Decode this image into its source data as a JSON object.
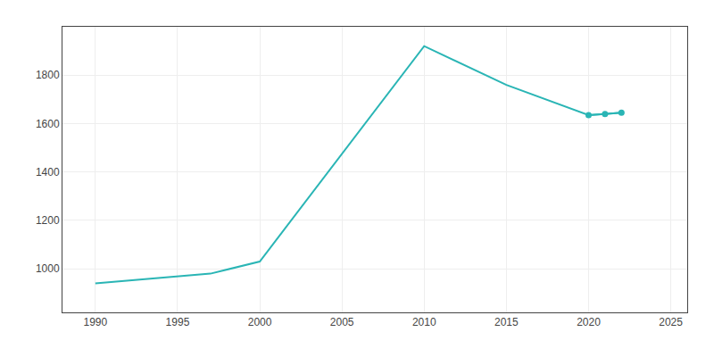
{
  "chart_data": {
    "type": "line",
    "x": [
      1990,
      1997,
      2000,
      2010,
      2015,
      2020,
      2021,
      2022
    ],
    "series": [
      {
        "color": "#2ab5b5",
        "values": [
          940,
          980,
          1030,
          1920,
          1760,
          1635,
          1640,
          1645
        ]
      },
      {
        "color": "#2ab5b5",
        "marker": "circle",
        "values": [
          null,
          null,
          null,
          null,
          null,
          1635,
          1640,
          1645
        ]
      }
    ],
    "xlim": [
      1988,
      2026
    ],
    "ylim": [
      820,
      2000
    ],
    "xticks": [
      1990,
      1995,
      2000,
      2005,
      2010,
      2015,
      2020,
      2025
    ],
    "yticks": [
      1000,
      1200,
      1400,
      1600,
      1800
    ],
    "grid": true
  }
}
